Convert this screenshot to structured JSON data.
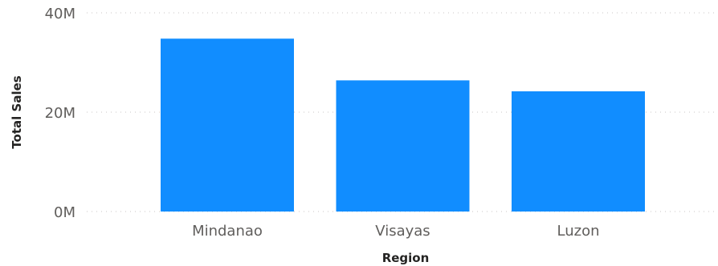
{
  "chart_data": {
    "type": "bar",
    "categories": [
      "Mindanao",
      "Visayas",
      "Luzon"
    ],
    "values": [
      34.8,
      26.4,
      24.2
    ],
    "ylim": [
      0,
      40
    ],
    "y_ticks": [
      0,
      20,
      40
    ],
    "y_tick_labels": [
      "0M",
      "20M",
      "40M"
    ],
    "xlabel": "Region",
    "ylabel": "Total Sales",
    "grid": true,
    "bar_color": "#118dff"
  }
}
